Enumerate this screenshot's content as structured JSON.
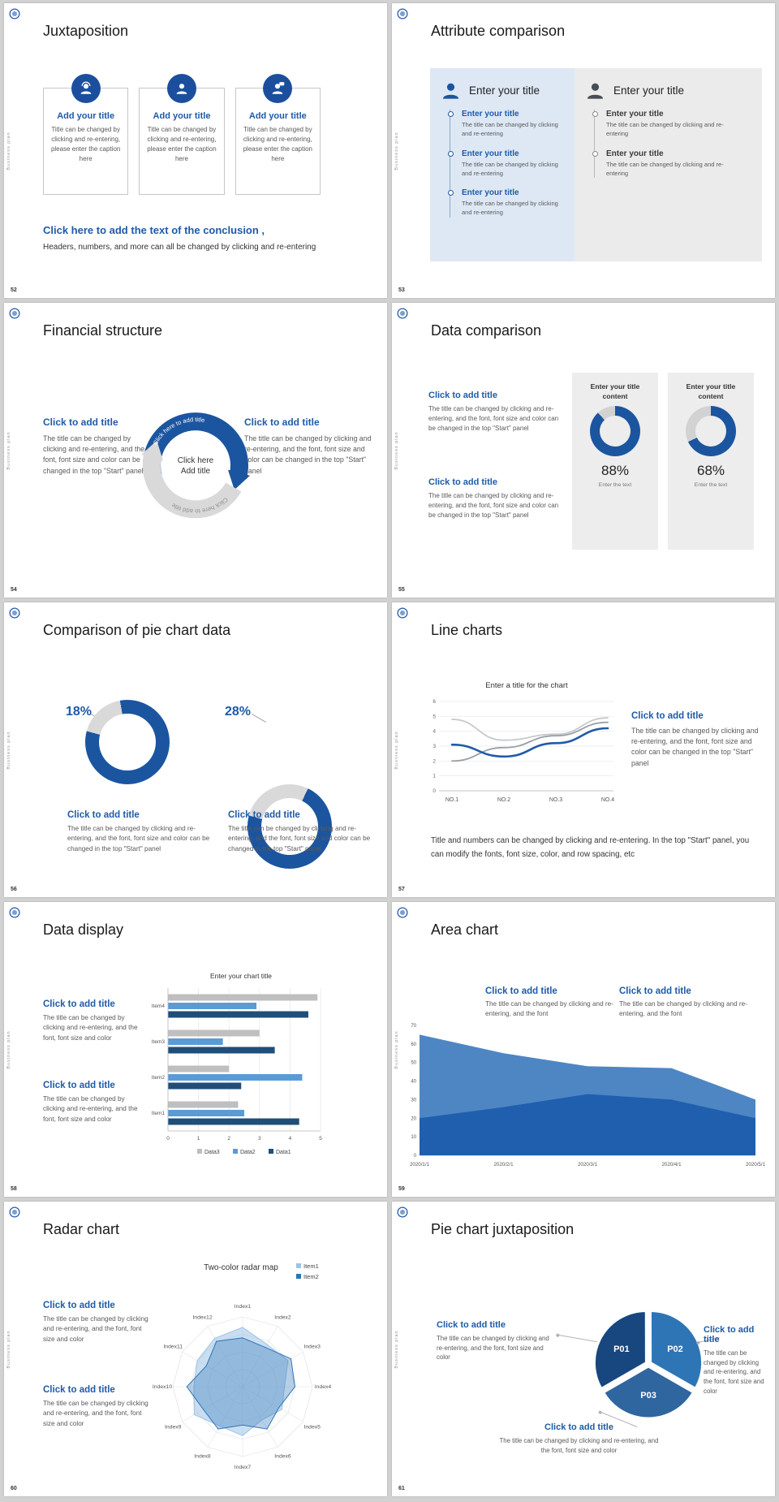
{
  "app": {
    "sidebar_text": "Business plan",
    "accent_blue": "#1f5aa8",
    "gutter_color": "#d2d2d2"
  },
  "slides": {
    "s52": {
      "number": "52",
      "title": "Juxtaposition",
      "cards": [
        {
          "icon": "consultant-icon",
          "title": "Add your title",
          "caption": "Title can be changed by clicking and re-entering, please enter the caption here"
        },
        {
          "icon": "person-icon",
          "title": "Add your title",
          "caption": "Title can be changed by clicking and re-entering, please enter the caption here"
        },
        {
          "icon": "speaker-chat-icon",
          "title": "Add your title",
          "caption": "Title can be changed by clicking and re-entering, please enter the caption here"
        }
      ],
      "conclusion_title": "Click here to add the text of the conclusion ,",
      "conclusion_text": "Headers, numbers, and more can all be changed by clicking and re-entering"
    },
    "s53": {
      "number": "53",
      "title": "Attribute comparison",
      "left_panel": {
        "header": "Enter your title",
        "items": [
          {
            "title": "Enter your title",
            "caption": "The title can be changed by clicking and re-entering"
          },
          {
            "title": "Enter your title",
            "caption": "The title can be changed by clicking and re-entering"
          },
          {
            "title": "Enter your title",
            "caption": "The title can be changed by clicking and re-entering"
          }
        ]
      },
      "right_panel": {
        "header": "Enter your title",
        "items": [
          {
            "title": "Enter your title",
            "caption": "The title can be changed by clicking and re-entering"
          },
          {
            "title": "Enter your title",
            "caption": "The title can be changed by clicking and re-entering"
          }
        ]
      }
    },
    "s54": {
      "number": "54",
      "title": "Financial structure",
      "left_block": {
        "title": "Click to add title",
        "caption": "The title can be changed by clicking and re-entering, and the font, font size and color can be changed in the top \"Start\" panel"
      },
      "right_block": {
        "title": "Click to add title",
        "caption": "The title can be changed by clicking and re-entering, and the font, font size and color can be changed in the top \"Start\" panel"
      },
      "center_line1": "Click here",
      "center_line2": "Add title",
      "arc_label_top": "Click here to add title",
      "arc_label_bottom": "Click here to add title"
    },
    "s55": {
      "number": "55",
      "title": "Data comparison",
      "blocks": [
        {
          "title": "Click to add title",
          "caption": "The title can be changed by clicking and re-entering, and the font, font size and color can be changed in the top \"Start\" panel"
        },
        {
          "title": "Click to add title",
          "caption": "The title can be changed by clicking and re-entering, and the font, font size and color can be changed in the top \"Start\" panel"
        }
      ],
      "donut_color": "#1b55a0",
      "donut_rest_color": "#d2d2d2",
      "panels": [
        {
          "header": "Enter your title content",
          "percent": 88,
          "percent_label": "88%",
          "footer": "Enter the text"
        },
        {
          "header": "Enter your title content",
          "percent": 68,
          "percent_label": "68%",
          "footer": "Enter the text"
        }
      ]
    },
    "s56": {
      "number": "56",
      "title": "Comparison of pie chart data",
      "donut_color": "#1b55a0",
      "donut_slice_color": "#d9d9d9",
      "charts": [
        {
          "percent": 18,
          "percent_label": "18%",
          "title": "Click to add title",
          "caption": "The title can be changed by clicking and re-entering, and the font, font size and color can be changed in the top \"Start\" panel"
        },
        {
          "percent": 28,
          "percent_label": "28%",
          "title": "Click to add title",
          "caption": "The title can be changed by clicking and re-entering, and the font, font size and color can be changed in the top \"Start\" panel"
        }
      ]
    },
    "s57": {
      "number": "57",
      "title": "Line charts",
      "chart": {
        "type": "line",
        "title": "Enter a title for the chart",
        "x_labels": [
          "NO.1",
          "NO.2",
          "NO.3",
          "NO.4"
        ],
        "y_ticks": [
          0,
          1,
          2,
          3,
          4,
          5,
          6
        ],
        "series": [
          {
            "name": "series-gray-light",
            "color": "#c6c9cc",
            "width": 1.8,
            "values": [
              4.8,
              3.4,
              3.8,
              4.9
            ]
          },
          {
            "name": "series-gray-dark",
            "color": "#9aa0a6",
            "width": 1.8,
            "values": [
              2.0,
              2.9,
              3.7,
              4.6
            ]
          },
          {
            "name": "series-blue",
            "color": "#1f5aa8",
            "width": 2.6,
            "values": [
              3.1,
              2.3,
              3.2,
              4.2
            ]
          }
        ]
      },
      "side_block": {
        "title": "Click to add title",
        "caption": "The title can be changed by clicking and re-entering, and the font, font size and color can be changed in the top \"Start\" panel"
      },
      "footer_text": "Title and numbers can be changed by clicking and re-entering. In the top \"Start\" panel, you can modify the fonts, font size, color, and row spacing, etc"
    },
    "s58": {
      "number": "58",
      "title": "Data display",
      "blocks": [
        {
          "title": "Click to add title",
          "caption": "The title can be changed by clicking and re-entering, and the font, font size and color"
        },
        {
          "title": "Click to add title",
          "caption": "The title can be changed by clicking and re-entering, and the font, font size and color"
        }
      ],
      "chart": {
        "type": "bar",
        "title": "Enter your chart title",
        "categories": [
          "Item1",
          "Item2",
          "Item3",
          "Item4"
        ],
        "x_ticks": [
          0,
          1,
          2,
          3,
          4,
          5
        ],
        "series": [
          {
            "name": "Data3",
            "color": "#bfbfbf",
            "values": [
              2.3,
              2.0,
              3.0,
              4.9
            ]
          },
          {
            "name": "Data2",
            "color": "#5b9bd5",
            "values": [
              2.5,
              4.4,
              1.8,
              2.9
            ]
          },
          {
            "name": "Data1",
            "color": "#1f4e79",
            "values": [
              4.3,
              2.4,
              3.5,
              4.6
            ]
          }
        ],
        "legend": [
          "Data3",
          "Data2",
          "Data1"
        ]
      }
    },
    "s59": {
      "number": "59",
      "title": "Area chart",
      "blocks": [
        {
          "title": "Click to add title",
          "caption": "The title can be changed by clicking and re-entering, and the font"
        },
        {
          "title": "Click to add title",
          "caption": "The title can be changed by clicking and re-entering, and the font"
        }
      ],
      "chart": {
        "type": "area",
        "x_labels": [
          "2020/1/1",
          "2020/2/1",
          "2020/3/1",
          "2020/4/1",
          "2020/5/1"
        ],
        "y_ticks": [
          0,
          10,
          20,
          30,
          40,
          50,
          60,
          70
        ],
        "series": [
          {
            "name": "upper-area",
            "color": "#4e86c4",
            "values": [
              65,
              55,
              48,
              47,
              30
            ]
          },
          {
            "name": "lower-area",
            "color": "#1f5fae",
            "values": [
              20,
              26,
              33,
              30,
              20
            ]
          }
        ]
      }
    },
    "s60": {
      "number": "60",
      "title": "Radar chart",
      "blocks": [
        {
          "title": "Click to add title",
          "caption": "The title can be changed by clicking and re-entering, and the font, font size and color"
        },
        {
          "title": "Click to add title",
          "caption": "The title can be changed by clicking and re-entering, and the font, font size and color"
        }
      ],
      "chart": {
        "type": "radar",
        "title": "Two-color radar map",
        "axes": [
          "Index1",
          "Index2",
          "Index3",
          "Index4",
          "Index5",
          "Index6",
          "Index7",
          "Index8",
          "Index9",
          "Index10",
          "Index11",
          "Index12"
        ],
        "max": 10,
        "series": [
          {
            "name": "Item1",
            "color": "#9dc3e6",
            "opacity": 0.55,
            "values": [
              8.5,
              7,
              7.5,
              6,
              6.5,
              5.5,
              7,
              6.5,
              8,
              7,
              7.5,
              8
            ]
          },
          {
            "name": "Item2",
            "color": "#2e75b6",
            "opacity": 0.35,
            "values": [
              7,
              6.5,
              8,
              7.5,
              6,
              7,
              5.5,
              7,
              6.5,
              8,
              6,
              7.5
            ]
          }
        ]
      }
    },
    "s61": {
      "number": "61",
      "title": "Pie chart juxtaposition",
      "pie": {
        "type": "pie",
        "segments": [
          {
            "label": "P01",
            "color": "#17477e",
            "value": 33.3
          },
          {
            "label": "P02",
            "color": "#2e75b6",
            "value": 33.3
          },
          {
            "label": "P03",
            "color": "#2f66a0",
            "value": 33.4
          }
        ]
      },
      "blocks": {
        "left": {
          "title": "Click to add title",
          "caption": "The title can be changed by clicking and re-entering, and the font, font size and color"
        },
        "right": {
          "title": "Click to add title",
          "caption": "The title can be changed by clicking and re-entering, and the font, font size and color"
        },
        "bottom": {
          "title": "Click to add title",
          "caption": "The title can be changed by clicking and re-entering, and the font, font size and color"
        }
      }
    }
  }
}
